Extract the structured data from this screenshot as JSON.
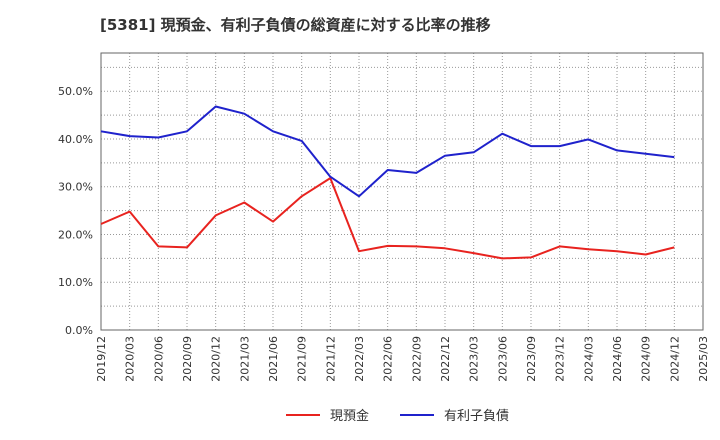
{
  "chart_data": {
    "type": "line",
    "title": "[5381]  現預金、有利子負債の総資産に対する比率の推移",
    "xlabel": "",
    "ylabel": "",
    "ylim": [
      0,
      0.58
    ],
    "yticks": [
      0,
      0.1,
      0.2,
      0.3,
      0.4,
      0.5
    ],
    "ytick_labels": [
      "0.0%",
      "10.0%",
      "20.0%",
      "30.0%",
      "40.0%",
      "50.0%"
    ],
    "categories": [
      "2019/12",
      "2020/03",
      "2020/06",
      "2020/09",
      "2020/12",
      "2021/03",
      "2021/06",
      "2021/09",
      "2021/12",
      "2022/03",
      "2022/06",
      "2022/09",
      "2022/12",
      "2023/03",
      "2023/06",
      "2023/09",
      "2023/12",
      "2024/03",
      "2024/06",
      "2024/09",
      "2024/12",
      "2025/03"
    ],
    "series": [
      {
        "name": "現預金",
        "color": "#e8231f",
        "values": [
          0.222,
          0.248,
          0.175,
          0.173,
          0.24,
          0.267,
          0.227,
          0.28,
          0.318,
          0.165,
          0.176,
          0.175,
          0.171,
          0.161,
          0.15,
          0.152,
          0.175,
          0.169,
          0.165,
          0.158,
          0.173,
          null
        ]
      },
      {
        "name": "有利子負債",
        "color": "#1f22cc",
        "values": [
          0.416,
          0.406,
          0.403,
          0.416,
          0.468,
          0.453,
          0.416,
          0.396,
          0.321,
          0.28,
          0.335,
          0.329,
          0.365,
          0.372,
          0.411,
          0.385,
          0.385,
          0.399,
          0.376,
          0.369,
          0.362,
          null
        ]
      }
    ],
    "grid": true,
    "legend": "bottom-center"
  }
}
